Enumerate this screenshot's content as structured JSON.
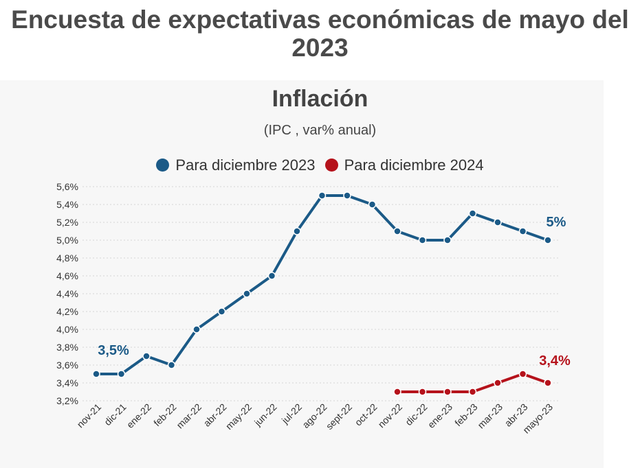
{
  "page": {
    "title": "Encuesta de expectativas económicas de mayo del 2023"
  },
  "chart_data": {
    "type": "line",
    "title": "Inflación",
    "subtitle": "(IPC , var% anual)",
    "x": [
      "nov-21",
      "dic-21",
      "ene-22",
      "feb-22",
      "mar-22",
      "abr-22",
      "may-22",
      "jun-22",
      "jul-22",
      "ago-22",
      "sept-22",
      "oct-22",
      "nov-22",
      "dic-22",
      "ene-23",
      "feb-23",
      "mar-23",
      "abr-23",
      "mayo-23"
    ],
    "ylim": [
      3.2,
      5.6
    ],
    "yticks": [
      "3,2%",
      "3,4%",
      "3,6%",
      "3,8%",
      "4,0%",
      "4,2%",
      "4,4%",
      "4,6%",
      "4,8%",
      "5,0%",
      "5,2%",
      "5,4%",
      "5,6%"
    ],
    "grid": true,
    "legend_position": "top",
    "series": [
      {
        "name": "Para diciembre 2023",
        "color": "#1b5a87",
        "values": [
          3.5,
          3.5,
          3.7,
          3.6,
          4.0,
          4.2,
          4.4,
          4.6,
          5.1,
          5.5,
          5.5,
          5.4,
          5.1,
          5.0,
          5.0,
          5.3,
          5.2,
          5.1,
          5.0
        ]
      },
      {
        "name": "Para diciembre 2024",
        "color": "#b5121b",
        "values": [
          null,
          null,
          null,
          null,
          null,
          null,
          null,
          null,
          null,
          null,
          null,
          null,
          3.3,
          3.3,
          3.3,
          3.3,
          3.4,
          3.5,
          3.4
        ]
      }
    ],
    "annotations": [
      {
        "text": "3,5%",
        "series": 0,
        "index": 0,
        "color": "#1b5a87"
      },
      {
        "text": "5%",
        "series": 0,
        "index": 18,
        "color": "#1b5a87"
      },
      {
        "text": "3,4%",
        "series": 1,
        "index": 18,
        "color": "#b5121b"
      }
    ]
  }
}
